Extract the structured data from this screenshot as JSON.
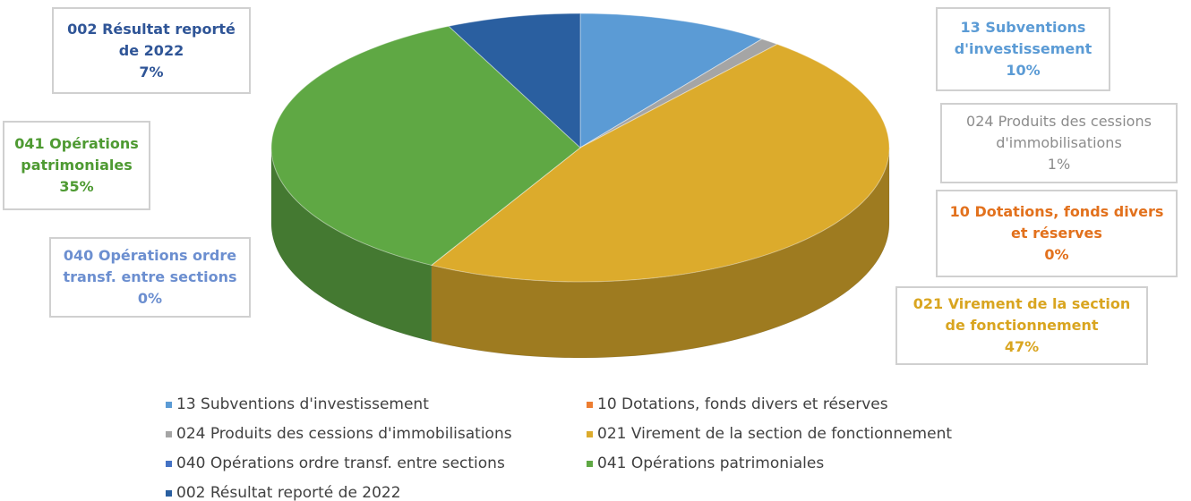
{
  "chart_data": {
    "type": "pie",
    "categories": [
      "13 Subventions d'investissement",
      "10 Dotations, fonds divers et réserves",
      "024 Produits des cessions d'immobilisations",
      "021 Virement de la section de fonctionnement",
      "040 Opérations ordre transf. entre sections",
      "041 Opérations patrimoniales",
      "002 Résultat reporté de 2022"
    ],
    "values": [
      10,
      0,
      1,
      47,
      0,
      35,
      7
    ],
    "value_labels": [
      "10%",
      "0%",
      "1%",
      "47%",
      "0%",
      "35%",
      "7%"
    ],
    "colors": [
      "#5b9bd5",
      "#ed7d31",
      "#a5a5a5",
      "#dcab2c",
      "#4472c4",
      "#5fa844",
      "#2a5fa0"
    ],
    "legend": "bottom"
  }
}
